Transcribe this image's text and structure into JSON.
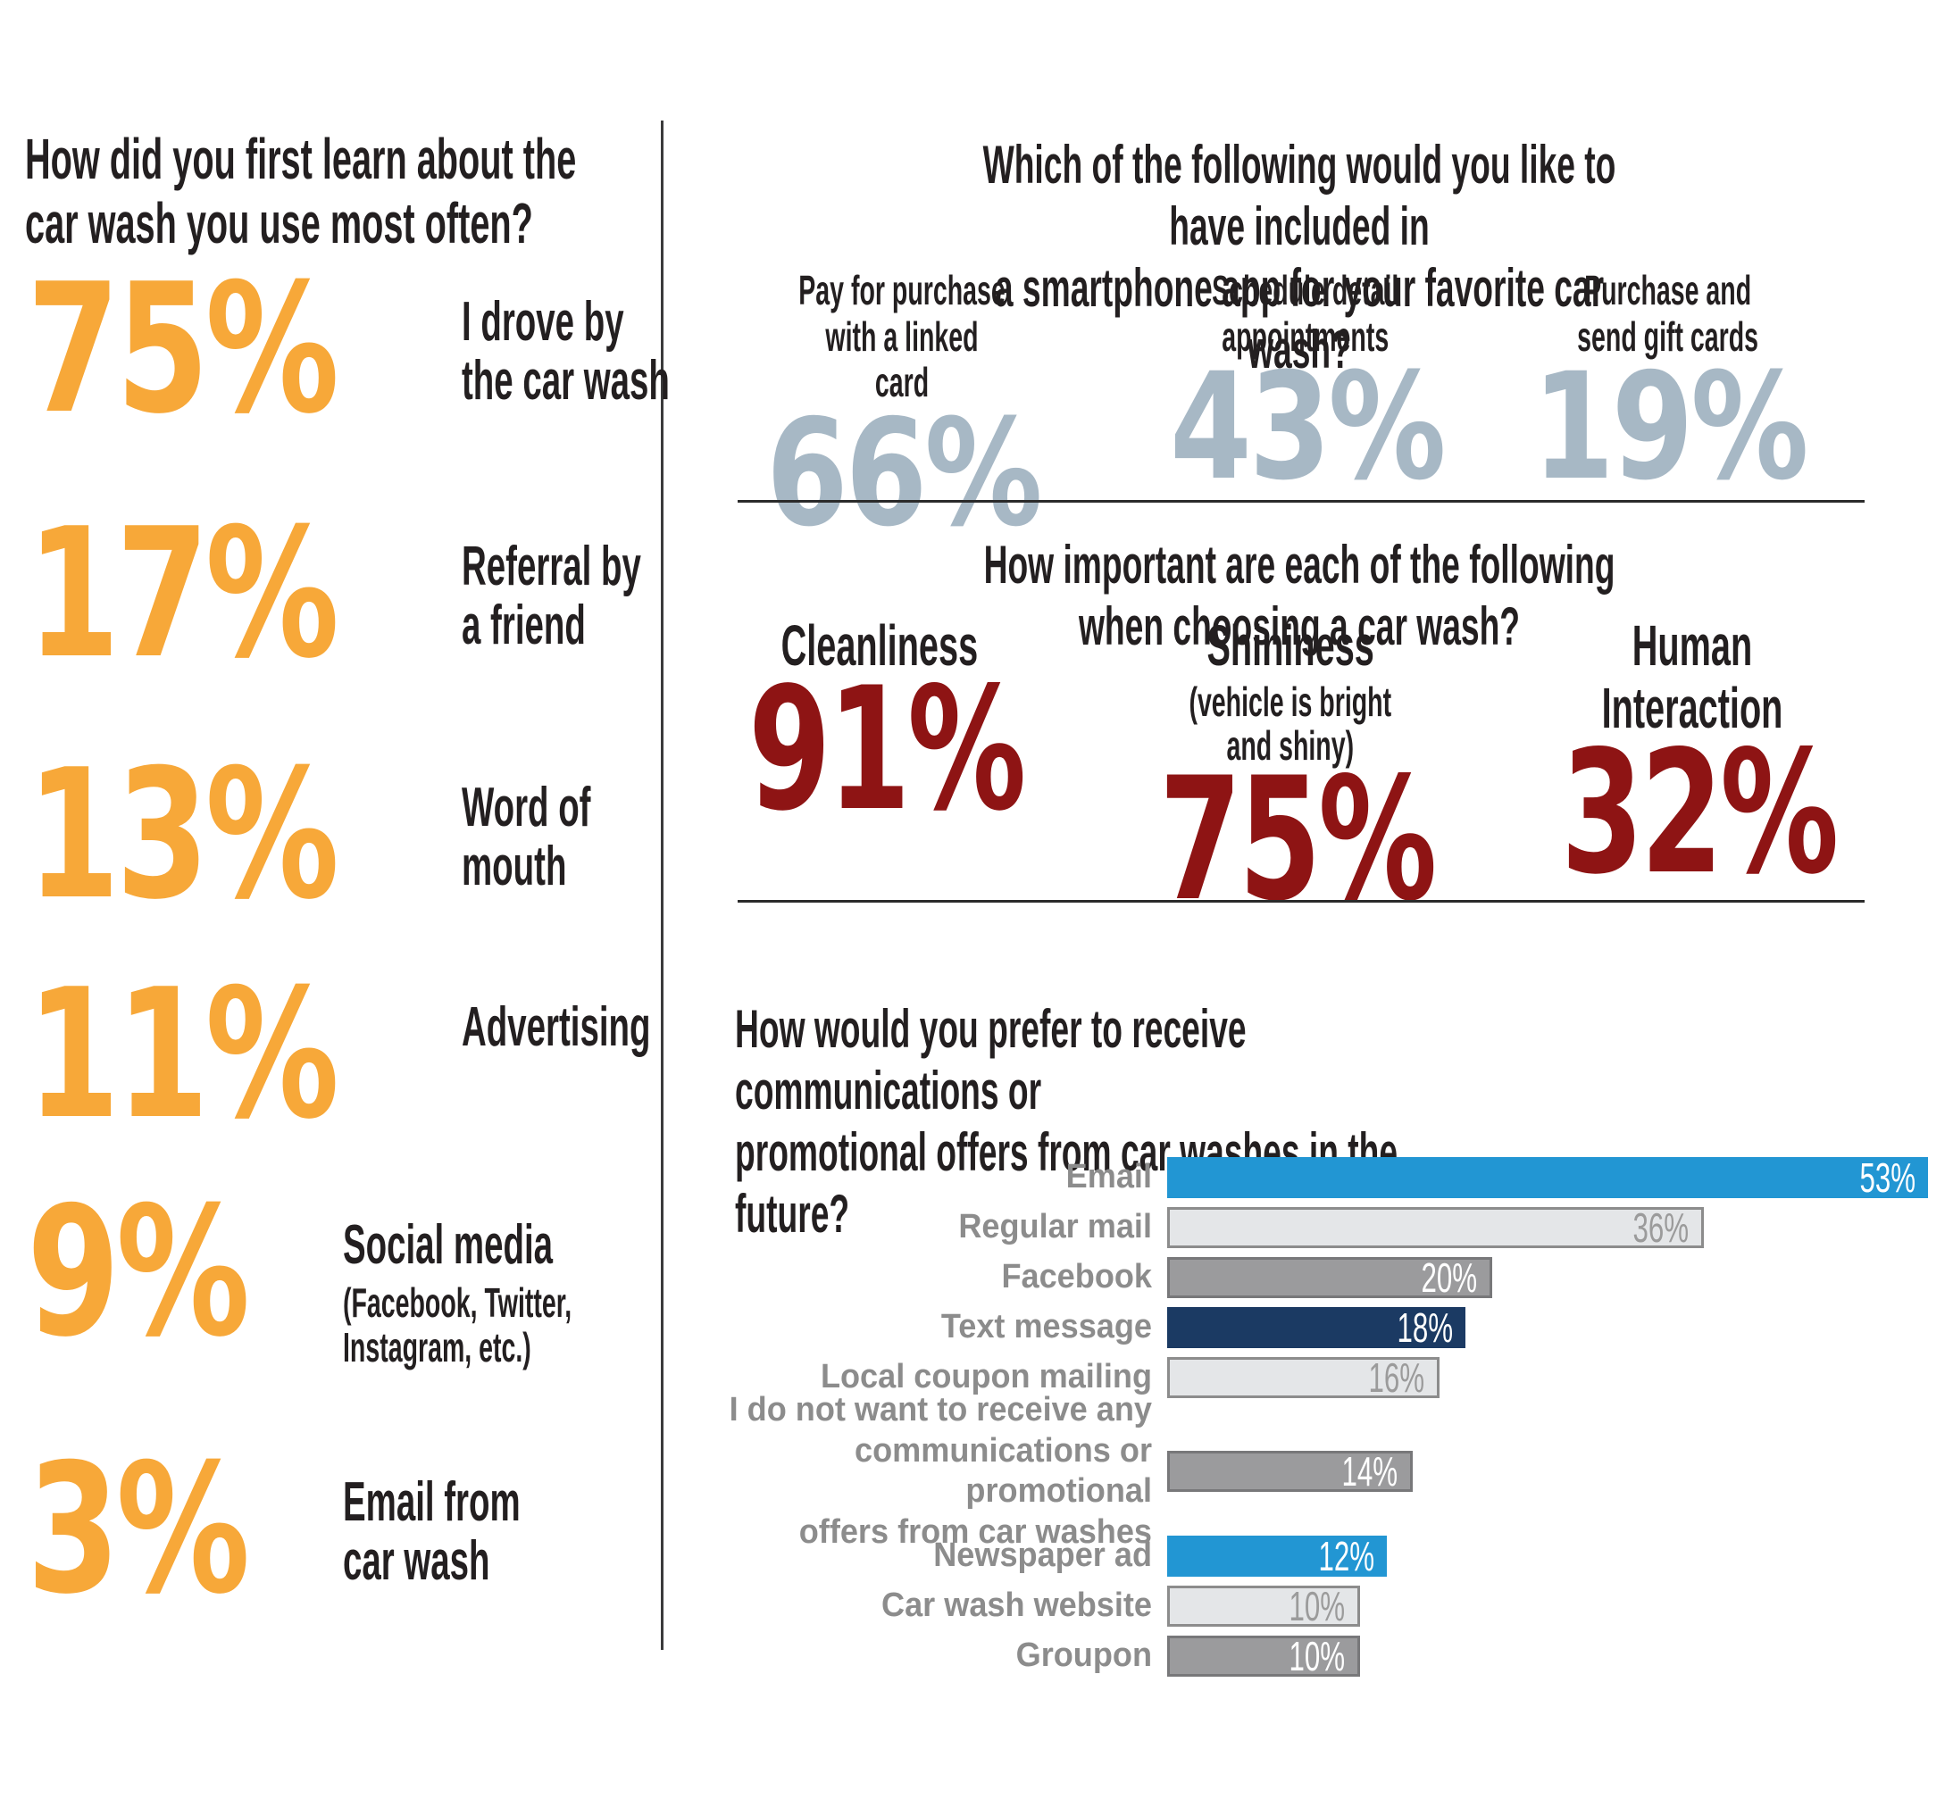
{
  "palette": {
    "orange": "#F7A839",
    "bluegray": "#A7B8C5",
    "maroon": "#8E1414",
    "blue": "#2296D3",
    "navy": "#1B3A63",
    "light_gray": "#E4E6E8",
    "mid_gray": "#9B9B9D",
    "light_gray_border": "#8C8C8C",
    "mid_gray_border": "#78787A",
    "ink": "#231F20",
    "label_gray": "#8C8C8C",
    "light_value_gray": "#9B9B9B",
    "rule": "#2B2B2B"
  },
  "chart_data": [
    {
      "type": "table",
      "unit": "%",
      "title_lines": [
        "How did you first learn about the",
        "car wash you use most often?"
      ],
      "items": [
        {
          "value": "75%",
          "pct": 75,
          "label_lines": [
            "I drove by",
            "the car wash"
          ]
        },
        {
          "value": "17%",
          "pct": 17,
          "label_lines": [
            "Referral by",
            "a friend"
          ]
        },
        {
          "value": "13%",
          "pct": 13,
          "label_lines": [
            "Word of",
            "mouth"
          ]
        },
        {
          "value": "11%",
          "pct": 11,
          "label_lines": [
            "Advertising"
          ]
        },
        {
          "value": "9%",
          "pct": 9,
          "label_lines": [
            "Social media"
          ],
          "note_lines": [
            "(Facebook, Twitter,",
            "Instagram, etc.)"
          ]
        },
        {
          "value": "3%",
          "pct": 3,
          "label_lines": [
            "Email from",
            "car wash"
          ]
        }
      ]
    },
    {
      "type": "table",
      "unit": "%",
      "title_lines": [
        "Which of the following would you like to have included in",
        "a smartphone app for your favorite car wash?"
      ],
      "items": [
        {
          "value": "66%",
          "pct": 66,
          "label_lines": [
            "Pay for purchase",
            "with a linked card"
          ]
        },
        {
          "value": "43%",
          "pct": 43,
          "label_lines": [
            "Schedule detail",
            "appointments"
          ]
        },
        {
          "value": "19%",
          "pct": 19,
          "label_lines": [
            "Purchase and",
            "send gift cards"
          ]
        }
      ]
    },
    {
      "type": "table",
      "unit": "%",
      "title_lines": [
        "How important are each of the following when choosing a car wash?"
      ],
      "items": [
        {
          "value": "91%",
          "pct": 91,
          "label_lines": [
            "Cleanliness"
          ]
        },
        {
          "value": "75%",
          "pct": 75,
          "label_lines": [
            "Shininess"
          ],
          "note_lines": [
            "(vehicle is bright",
            "and shiny)"
          ]
        },
        {
          "value": "32%",
          "pct": 32,
          "label_lines": [
            "Human Interaction"
          ]
        }
      ]
    },
    {
      "type": "bar",
      "orientation": "horizontal",
      "unit": "%",
      "title_lines": [
        "How would you prefer to receive communications or",
        "promotional offers from car washes in the future?"
      ],
      "items": [
        {
          "label_lines": [
            "Email"
          ],
          "pct": 53,
          "value": "53%",
          "fill": "#2296D3",
          "border": null,
          "value_color": "#FFFFFF"
        },
        {
          "label_lines": [
            "Regular mail"
          ],
          "pct": 36,
          "value": "36%",
          "fill": "#E4E6E8",
          "border": "#8C8C8C",
          "value_color": "#9B9B9B"
        },
        {
          "label_lines": [
            "Facebook"
          ],
          "pct": 20,
          "value": "20%",
          "fill": "#9B9B9D",
          "border": "#78787A",
          "value_color": "#FFFFFF"
        },
        {
          "label_lines": [
            "Text message"
          ],
          "pct": 18,
          "value": "18%",
          "fill": "#1B3A63",
          "border": null,
          "value_color": "#FFFFFF"
        },
        {
          "label_lines": [
            "Local coupon mailing"
          ],
          "pct": 16,
          "value": "16%",
          "fill": "#E4E6E8",
          "border": "#8C8C8C",
          "value_color": "#9B9B9B"
        },
        {
          "label_lines": [
            "I do not want to receive any",
            "communications or promotional",
            "offers from car washes"
          ],
          "pct": 14,
          "value": "14%",
          "fill": "#9B9B9D",
          "border": "#78787A",
          "value_color": "#FFFFFF"
        },
        {
          "label_lines": [
            "Newspaper ad"
          ],
          "pct": 12,
          "value": "12%",
          "fill": "#2296D3",
          "border": null,
          "value_color": "#FFFFFF"
        },
        {
          "label_lines": [
            "Car wash website"
          ],
          "pct": 10,
          "value": "10%",
          "fill": "#E4E6E8",
          "border": "#8C8C8C",
          "value_color": "#9B9B9B"
        },
        {
          "label_lines": [
            "Groupon"
          ],
          "pct": 10,
          "value": "10%",
          "fill": "#9B9B9D",
          "border": "#78787A",
          "value_color": "#FFFFFF"
        }
      ]
    }
  ]
}
